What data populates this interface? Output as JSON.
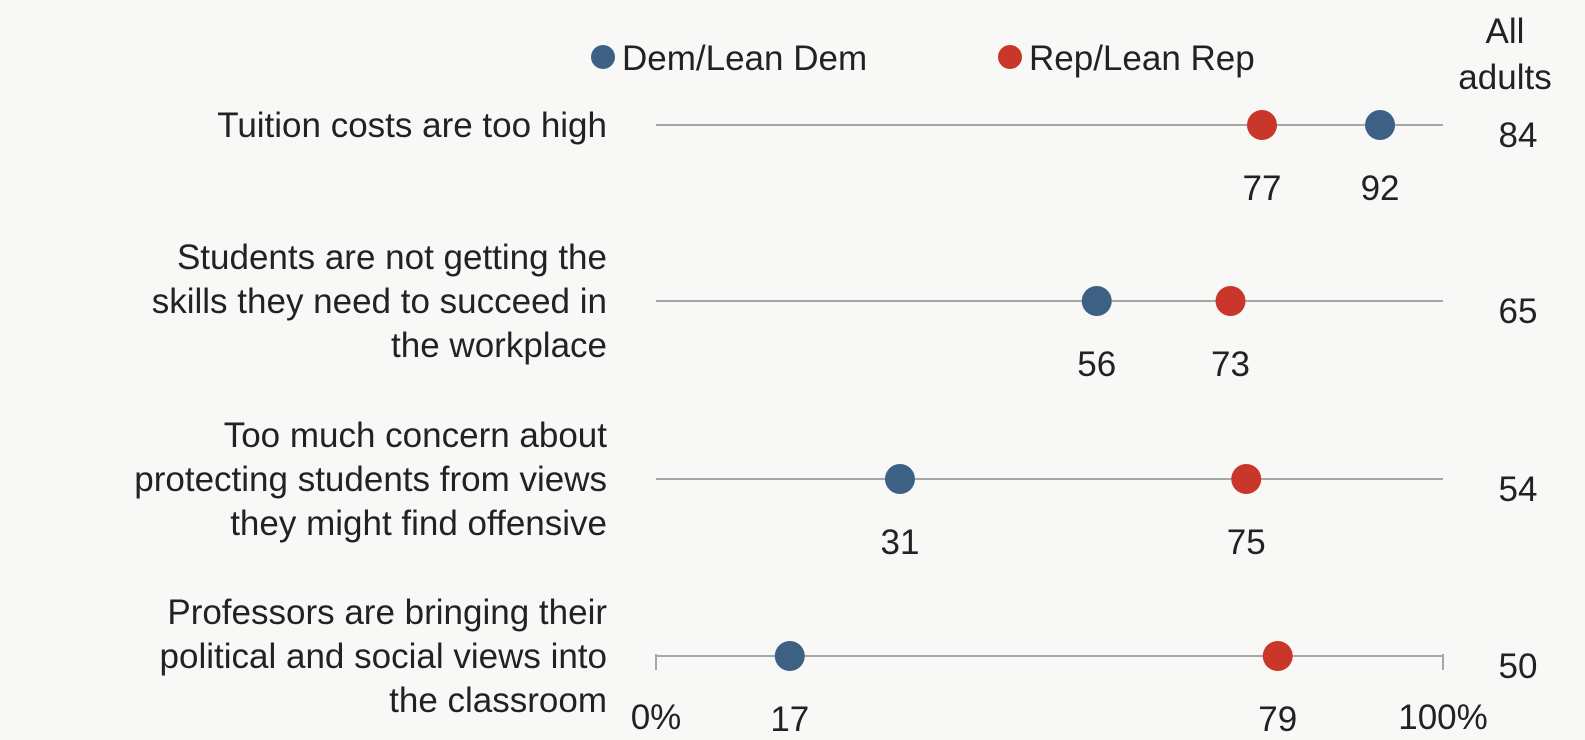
{
  "chart_data": {
    "type": "dot",
    "categories": [
      [
        "Tuition costs are too high"
      ],
      [
        "Students are not getting the",
        "skills they need to succeed in",
        "the workplace"
      ],
      [
        "Too much concern about",
        "protecting students from views",
        "they might find offensive"
      ],
      [
        "Professors are bringing their",
        "political and social views into",
        "the classroom"
      ]
    ],
    "series": [
      {
        "name": "Dem/Lean Dem",
        "color": "#3d6185",
        "values": [
          92,
          56,
          31,
          17
        ]
      },
      {
        "name": "Rep/Lean Rep",
        "color": "#c9372a",
        "values": [
          77,
          73,
          75,
          79
        ]
      }
    ],
    "all_adults": {
      "header": [
        "All",
        "adults"
      ],
      "values": [
        84,
        65,
        54,
        50
      ]
    },
    "xlim": [
      0,
      100
    ],
    "axis_labels": {
      "min": "0%",
      "max": "100%"
    }
  }
}
